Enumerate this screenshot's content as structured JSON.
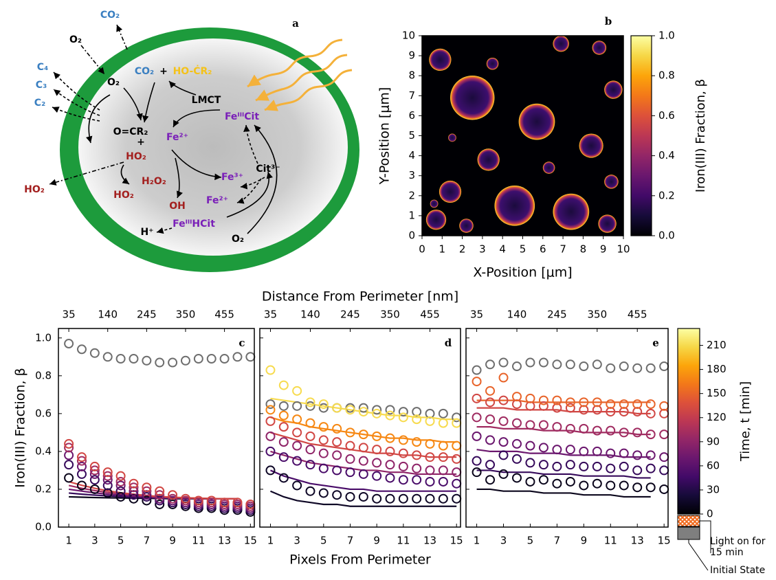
{
  "diagram": {
    "panel": "a",
    "labels": [
      "CO₂",
      "O₂",
      "C₄",
      "C₃",
      "C₂",
      "O₂",
      "CO₂",
      "+",
      "HO-ĊR₂",
      "LMCT",
      "FeᴵᴵᴵCit",
      "O=CR₂",
      "+",
      "Fe²⁺",
      "HO₂",
      "HO₂",
      "H₂O₂",
      "HO₂",
      "Fe³⁺",
      "Cit³⁻",
      "Fe²⁺",
      "OH",
      "FeᴵᴵᴵHCit",
      "H⁺",
      "O₂"
    ]
  },
  "chart_data": [
    {
      "type": "scatter",
      "panel": "b",
      "xlabel": "X-Position [μm]",
      "ylabel": "Y-Position [μm]",
      "x": [
        2.5,
        5.7,
        4.6,
        7.4,
        8.4,
        9.5,
        3.3,
        6.3,
        1.5,
        9.4,
        0.9,
        3.5,
        6.9,
        8.8,
        1.4,
        2.2,
        0.7,
        0.6,
        9.2
      ],
      "values": [
        6.9,
        5.7,
        1.5,
        1.2,
        4.5,
        7.3,
        3.8,
        3.4,
        4.9,
        2.7,
        8.8,
        8.6,
        9.6,
        9.4,
        2.2,
        0.5,
        0.8,
        1.6,
        0.6
      ],
      "sizes": [
        1.1,
        0.9,
        1.0,
        0.9,
        0.6,
        0.45,
        0.55,
        0.3,
        0.2,
        0.35,
        0.55,
        0.3,
        0.4,
        0.35,
        0.55,
        0.35,
        0.5,
        0.2,
        0.45
      ],
      "xlim": [
        0,
        10
      ],
      "ylim": [
        0,
        10
      ],
      "xticks": [
        0,
        1,
        2,
        3,
        4,
        5,
        6,
        7,
        8,
        9,
        10
      ],
      "yticks": [
        0,
        1,
        2,
        3,
        4,
        5,
        6,
        7,
        8,
        9,
        10
      ],
      "colorbar": {
        "label": "Iron(III) Fraction, β",
        "colormap": "inferno",
        "clim": [
          0,
          1
        ],
        "ticks": [
          {
            "value": 0,
            "label": "0.0"
          },
          0.2,
          0.4,
          0.6,
          0.8,
          {
            "value": 1,
            "label": "1.0"
          }
        ]
      }
    },
    {
      "type": "line",
      "panel": "c",
      "ylabel": "Iron(III) Fraction, β",
      "colormap": "inferno",
      "clim": [
        0,
        231
      ],
      "x": [
        1,
        2,
        3,
        4,
        5,
        6,
        7,
        8,
        9,
        10,
        11,
        12,
        13,
        14,
        15
      ],
      "fit_x": [
        1,
        2,
        3,
        4,
        5,
        6,
        7,
        8,
        9,
        10,
        11,
        12,
        13,
        14
      ],
      "xlim": [
        0.2,
        15.3
      ],
      "ylim": [
        0,
        1.05
      ],
      "xticks": [
        1,
        3,
        5,
        7,
        9,
        11,
        13,
        15
      ],
      "yticks": [
        {
          "value": 0,
          "label": "0.0"
        },
        0.2,
        0.4,
        0.6,
        0.8,
        {
          "value": 1,
          "label": "1.0"
        }
      ],
      "show_ytick_labels": true,
      "x2lim": [
        7,
        535.5
      ],
      "x2ticks": [
        35,
        140,
        245,
        350,
        455
      ],
      "series": [
        {
          "color": "#6e6e6e",
          "values": [
            0.97,
            0.94,
            0.92,
            0.9,
            0.89,
            0.89,
            0.88,
            0.87,
            0.87,
            0.88,
            0.89,
            0.89,
            0.89,
            0.9,
            0.9
          ]
        },
        {
          "time": 10,
          "values": [
            0.26,
            0.22,
            0.2,
            0.18,
            0.16,
            0.15,
            0.14,
            0.12,
            0.12,
            0.11,
            0.1,
            0.1,
            0.09,
            0.09,
            0.08
          ],
          "fit": [
            0.16,
            0.158,
            0.156,
            0.155,
            0.154,
            0.153,
            0.152,
            0.151,
            0.15,
            0.15,
            0.15,
            0.15,
            0.15,
            0.15
          ]
        },
        {
          "time": 40,
          "values": [
            0.33,
            0.28,
            0.25,
            0.22,
            0.19,
            0.17,
            0.16,
            0.14,
            0.13,
            0.12,
            0.11,
            0.11,
            0.1,
            0.1,
            0.09
          ],
          "fit": [
            0.18,
            0.174,
            0.169,
            0.165,
            0.161,
            0.158,
            0.156,
            0.154,
            0.153,
            0.152,
            0.151,
            0.15,
            0.15,
            0.15
          ]
        },
        {
          "time": 70,
          "values": [
            0.38,
            0.32,
            0.28,
            0.25,
            0.22,
            0.19,
            0.17,
            0.15,
            0.14,
            0.13,
            0.12,
            0.12,
            0.11,
            0.11,
            0.1
          ],
          "fit": [
            0.2,
            0.19,
            0.181,
            0.174,
            0.168,
            0.163,
            0.159,
            0.156,
            0.154,
            0.152,
            0.151,
            0.15,
            0.15,
            0.15
          ]
        },
        {
          "time": 100,
          "values": [
            0.42,
            0.35,
            0.3,
            0.27,
            0.24,
            0.21,
            0.19,
            0.17,
            0.15,
            0.14,
            0.13,
            0.13,
            0.12,
            0.12,
            0.11
          ],
          "fit": [
            0.22,
            0.205,
            0.193,
            0.183,
            0.175,
            0.168,
            0.163,
            0.159,
            0.156,
            0.154,
            0.152,
            0.151,
            0.15,
            0.15
          ]
        },
        {
          "time": 130,
          "values": [
            0.44,
            0.37,
            0.32,
            0.29,
            0.27,
            0.23,
            0.21,
            0.19,
            0.17,
            0.15,
            0.14,
            0.14,
            0.13,
            0.13,
            0.12
          ],
          "fit": [
            0.24,
            0.221,
            0.205,
            0.192,
            0.182,
            0.174,
            0.167,
            0.162,
            0.158,
            0.155,
            0.153,
            0.151,
            0.15,
            0.15
          ]
        }
      ]
    },
    {
      "type": "line",
      "panel": "d",
      "xlabel": "Pixels From Perimeter",
      "x2label": "Distance From Perimeter [nm]",
      "colormap": "inferno",
      "clim": [
        0,
        231
      ],
      "x": [
        1,
        2,
        3,
        4,
        5,
        6,
        7,
        8,
        9,
        10,
        11,
        12,
        13,
        14,
        15
      ],
      "fit_x": [
        1,
        2,
        3,
        4,
        5,
        6,
        7,
        8,
        9,
        10,
        11,
        12,
        13,
        14,
        15
      ],
      "xlim": [
        0.2,
        15.3
      ],
      "ylim": [
        0,
        1.05
      ],
      "xticks": [
        1,
        3,
        5,
        7,
        9,
        11,
        13,
        15
      ],
      "yticks": [
        0,
        0.2,
        0.4,
        0.6,
        0.8,
        1
      ],
      "show_ytick_labels": false,
      "x2lim": [
        7,
        535.5
      ],
      "x2ticks": [
        35,
        140,
        245,
        350,
        455
      ],
      "series": [
        {
          "color": "#6e6e6e",
          "values": [
            0.65,
            0.64,
            0.64,
            0.64,
            0.63,
            0.63,
            0.63,
            0.63,
            0.62,
            0.62,
            0.61,
            0.61,
            0.6,
            0.6,
            0.58
          ]
        },
        {
          "time": 15,
          "values": [
            0.3,
            0.26,
            0.22,
            0.19,
            0.18,
            0.17,
            0.16,
            0.16,
            0.15,
            0.15,
            0.15,
            0.15,
            0.15,
            0.15,
            0.15
          ],
          "fit": [
            0.19,
            0.16,
            0.14,
            0.13,
            0.12,
            0.12,
            0.11,
            0.11,
            0.11,
            0.11,
            0.11,
            0.11,
            0.11,
            0.11,
            0.11
          ]
        },
        {
          "time": 50,
          "values": [
            0.4,
            0.37,
            0.35,
            0.33,
            0.31,
            0.3,
            0.29,
            0.28,
            0.27,
            0.26,
            0.25,
            0.25,
            0.24,
            0.24,
            0.23
          ],
          "fit": [
            0.3,
            0.27,
            0.25,
            0.23,
            0.22,
            0.21,
            0.2,
            0.2,
            0.19,
            0.19,
            0.19,
            0.19,
            0.19,
            0.19,
            0.19
          ]
        },
        {
          "time": 90,
          "values": [
            0.48,
            0.45,
            0.43,
            0.41,
            0.39,
            0.38,
            0.36,
            0.35,
            0.34,
            0.33,
            0.32,
            0.31,
            0.3,
            0.3,
            0.29
          ],
          "fit": [
            0.4,
            0.38,
            0.36,
            0.34,
            0.33,
            0.32,
            0.31,
            0.3,
            0.3,
            0.29,
            0.29,
            0.28,
            0.28,
            0.28,
            0.28
          ]
        },
        {
          "time": 130,
          "values": [
            0.56,
            0.53,
            0.5,
            0.48,
            0.46,
            0.45,
            0.43,
            0.42,
            0.41,
            0.4,
            0.39,
            0.38,
            0.37,
            0.37,
            0.36
          ],
          "fit": [
            0.5,
            0.48,
            0.46,
            0.44,
            0.43,
            0.42,
            0.41,
            0.4,
            0.39,
            0.39,
            0.38,
            0.38,
            0.37,
            0.37,
            0.37
          ]
        },
        {
          "time": 170,
          "values": [
            0.62,
            0.59,
            0.57,
            0.55,
            0.53,
            0.52,
            0.5,
            0.49,
            0.48,
            0.47,
            0.46,
            0.45,
            0.44,
            0.43,
            0.43
          ],
          "fit": [
            0.58,
            0.56,
            0.55,
            0.53,
            0.52,
            0.51,
            0.5,
            0.49,
            0.48,
            0.47,
            0.47,
            0.46,
            0.46,
            0.45,
            0.45
          ]
        },
        {
          "time": 210,
          "values": [
            0.83,
            0.75,
            0.72,
            0.66,
            0.65,
            0.63,
            0.62,
            0.61,
            0.6,
            0.59,
            0.58,
            0.57,
            0.56,
            0.55,
            0.55
          ],
          "fit": [
            0.68,
            0.67,
            0.66,
            0.65,
            0.64,
            0.63,
            0.62,
            0.61,
            0.6,
            0.59,
            0.59,
            0.58,
            0.58,
            0.57,
            0.57
          ]
        }
      ]
    },
    {
      "type": "line",
      "panel": "e",
      "colormap": "inferno",
      "clim": [
        0,
        231
      ],
      "x": [
        1,
        2,
        3,
        4,
        5,
        6,
        7,
        8,
        9,
        10,
        11,
        12,
        13,
        14,
        15
      ],
      "fit_x": [
        1,
        2,
        3,
        4,
        5,
        6,
        7,
        8,
        9,
        10,
        11,
        12,
        13,
        14
      ],
      "xlim": [
        0.2,
        15.3
      ],
      "ylim": [
        0,
        1.05
      ],
      "xticks": [
        1,
        3,
        5,
        7,
        9,
        11,
        13,
        15
      ],
      "yticks": [
        0,
        0.2,
        0.4,
        0.6,
        0.8,
        1
      ],
      "show_ytick_labels": false,
      "x2lim": [
        7,
        535.5
      ],
      "x2ticks": [
        35,
        140,
        245,
        350,
        455
      ],
      "series": [
        {
          "color": "#6e6e6e",
          "values": [
            0.83,
            0.86,
            0.87,
            0.85,
            0.87,
            0.87,
            0.86,
            0.86,
            0.85,
            0.86,
            0.84,
            0.85,
            0.84,
            0.84,
            0.85
          ]
        },
        {
          "time": 10,
          "values": [
            0.29,
            0.25,
            0.28,
            0.26,
            0.24,
            0.25,
            0.23,
            0.24,
            0.22,
            0.23,
            0.22,
            0.22,
            0.21,
            0.21,
            0.2
          ],
          "fit": [
            0.2,
            0.2,
            0.19,
            0.19,
            0.19,
            0.18,
            0.18,
            0.18,
            0.17,
            0.17,
            0.17,
            0.16,
            0.16,
            0.16
          ]
        },
        {
          "time": 40,
          "values": [
            0.35,
            0.33,
            0.38,
            0.36,
            0.34,
            0.33,
            0.32,
            0.33,
            0.32,
            0.32,
            0.31,
            0.32,
            0.3,
            0.31,
            0.3
          ],
          "fit": [
            0.3,
            0.3,
            0.29,
            0.29,
            0.29,
            0.28,
            0.28,
            0.28,
            0.27,
            0.27,
            0.27,
            0.27,
            0.26,
            0.26
          ]
        },
        {
          "time": 70,
          "values": [
            0.48,
            0.46,
            0.45,
            0.44,
            0.43,
            0.42,
            0.41,
            0.41,
            0.4,
            0.4,
            0.39,
            0.39,
            0.38,
            0.38,
            0.37
          ],
          "fit": [
            0.41,
            0.4,
            0.4,
            0.4,
            0.39,
            0.39,
            0.39,
            0.38,
            0.38,
            0.38,
            0.38,
            0.37,
            0.37,
            0.37
          ]
        },
        {
          "time": 100,
          "values": [
            0.58,
            0.57,
            0.56,
            0.55,
            0.54,
            0.54,
            0.53,
            0.52,
            0.52,
            0.51,
            0.51,
            0.5,
            0.5,
            0.49,
            0.49
          ],
          "fit": [
            0.53,
            0.53,
            0.52,
            0.52,
            0.52,
            0.51,
            0.51,
            0.51,
            0.5,
            0.5,
            0.5,
            0.5,
            0.49,
            0.49
          ]
        },
        {
          "time": 130,
          "values": [
            0.68,
            0.66,
            0.67,
            0.65,
            0.64,
            0.64,
            0.63,
            0.63,
            0.62,
            0.62,
            0.61,
            0.61,
            0.61,
            0.6,
            0.6
          ],
          "fit": [
            0.63,
            0.63,
            0.63,
            0.62,
            0.62,
            0.62,
            0.62,
            0.61,
            0.61,
            0.61,
            0.61,
            0.61,
            0.6,
            0.6
          ]
        },
        {
          "time": 150,
          "values": [
            0.77,
            0.72,
            0.79,
            0.69,
            0.68,
            0.67,
            0.67,
            0.66,
            0.66,
            0.66,
            0.65,
            0.65,
            0.65,
            0.65,
            0.64
          ],
          "fit": [
            0.67,
            0.67,
            0.67,
            0.67,
            0.66,
            0.66,
            0.66,
            0.66,
            0.66,
            0.66,
            0.66,
            0.66,
            0.66,
            0.66
          ]
        }
      ],
      "colorbar": {
        "label": "Time, t [min]",
        "colormap": "inferno",
        "clim": [
          0,
          231
        ],
        "ticks": [
          0,
          30,
          60,
          90,
          120,
          150,
          180,
          210
        ],
        "extras": [
          "Light on for 15 min",
          "Initial State"
        ]
      }
    }
  ]
}
